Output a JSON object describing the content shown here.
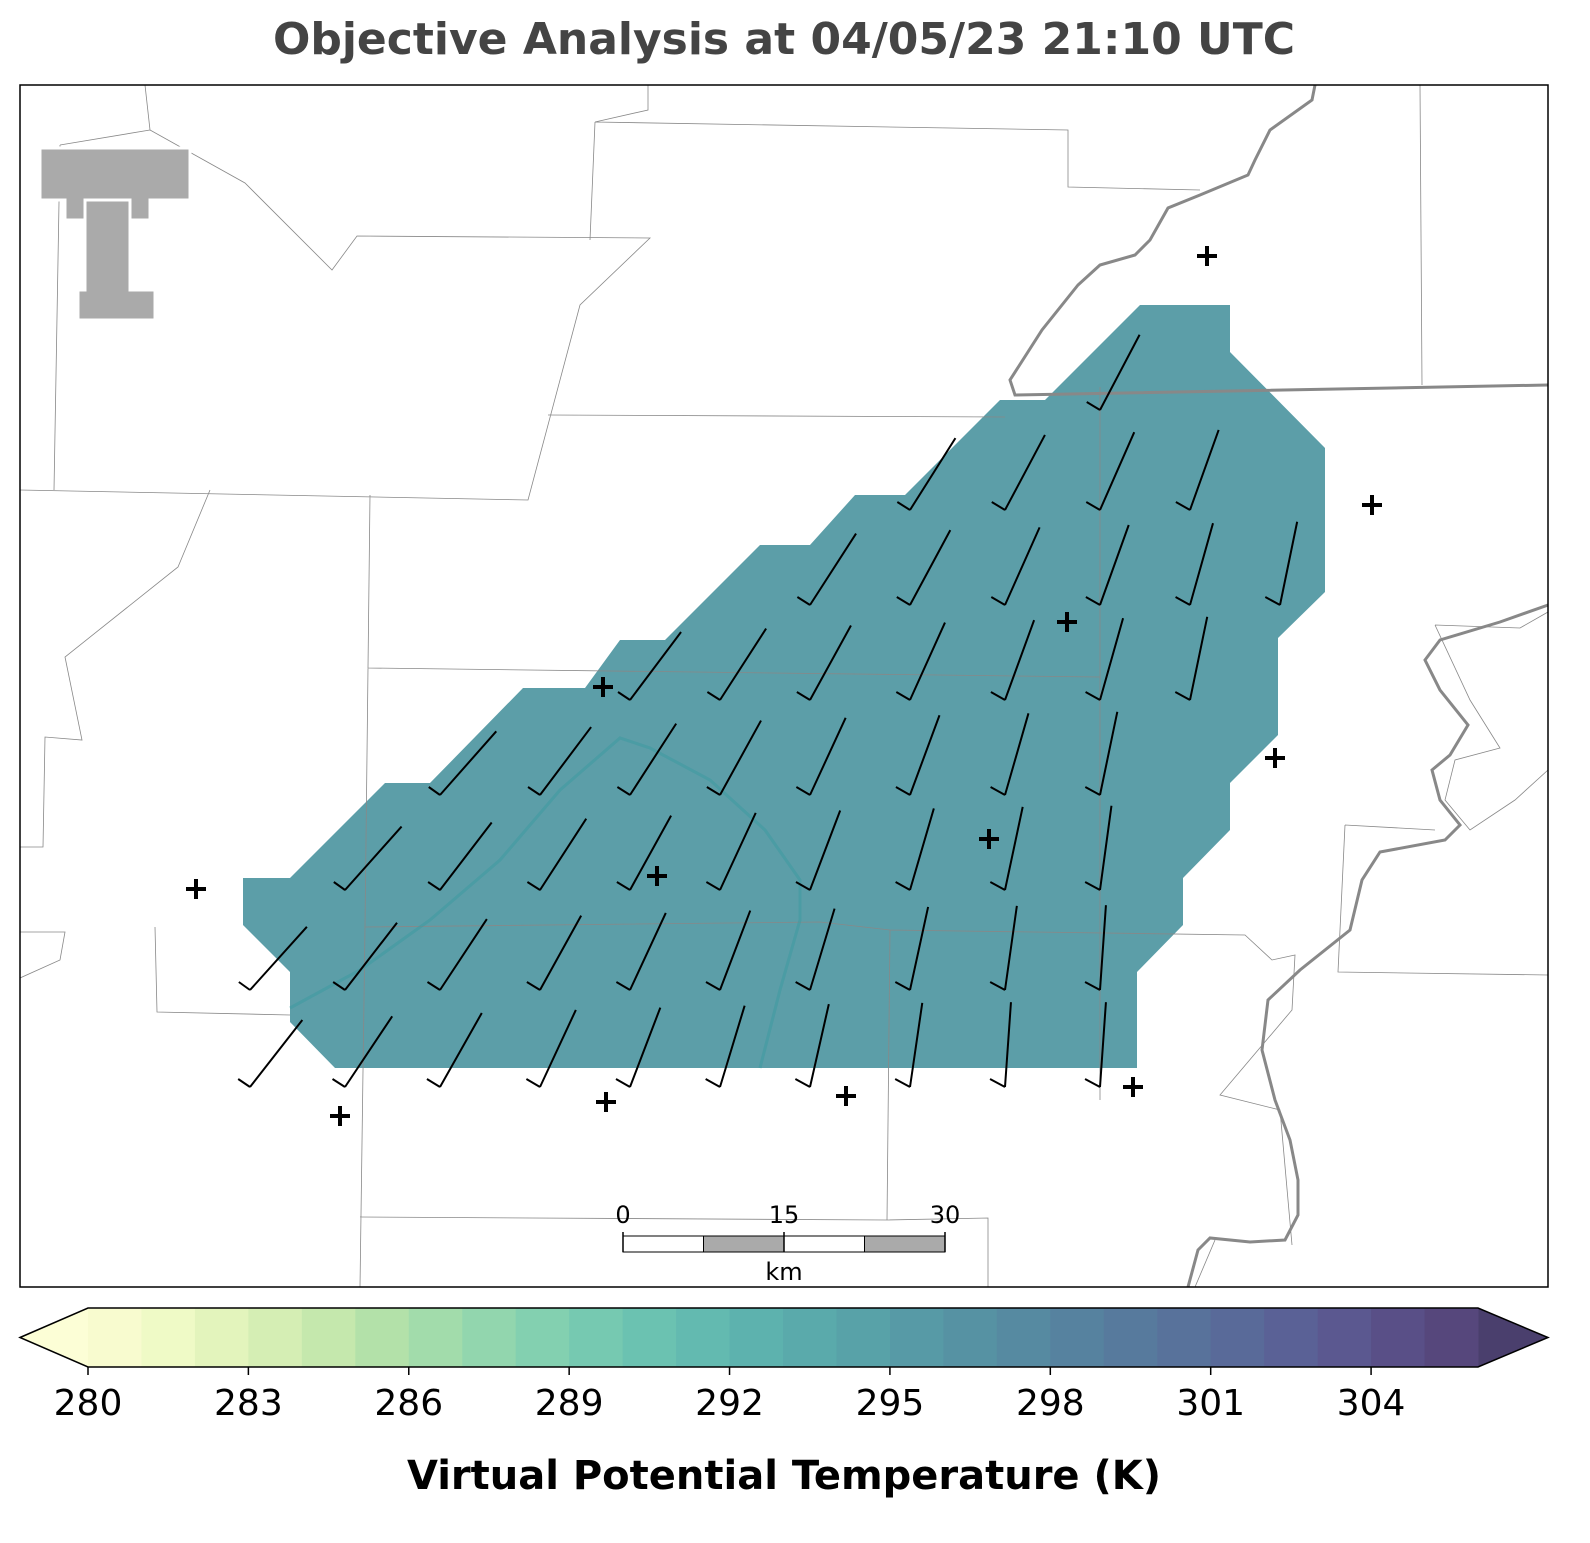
{
  "title": "Objective Analysis at 04/05/23 21:10 UTC",
  "analysis_fill_color": "#5c9ea8",
  "scale_bar": {
    "lim": [
      0,
      30
    ],
    "ticks": [
      0,
      15,
      30
    ],
    "unit": "km"
  },
  "colorbar": {
    "label": "Virtual Potential Temperature (K)",
    "levels": [
      280,
      281,
      282,
      283,
      284,
      285,
      286,
      287,
      288,
      289,
      290,
      291,
      292,
      293,
      294,
      295,
      296,
      297,
      298,
      299,
      300,
      301,
      302,
      303,
      304,
      305,
      306
    ],
    "ticks": [
      280,
      283,
      286,
      289,
      292,
      295,
      298,
      301,
      304
    ],
    "colors": [
      "#f8fbcf",
      "#effac6",
      "#e3f4bc",
      "#d5eeb4",
      "#c5e8ad",
      "#b3e1a9",
      "#a2dcab",
      "#92d6ae",
      "#83d0b0",
      "#76c9b1",
      "#6bc2b1",
      "#63bab0",
      "#5db2ae",
      "#5aaaab",
      "#58a2a8",
      "#579aa6",
      "#5692a3",
      "#568aa1",
      "#56829f",
      "#577a9d",
      "#58729b",
      "#596a99",
      "#5a6196",
      "#5b5890",
      "#594f87",
      "#56477c"
    ],
    "under_color": "#fcfed6",
    "over_color": "#4a3f6d"
  }
}
